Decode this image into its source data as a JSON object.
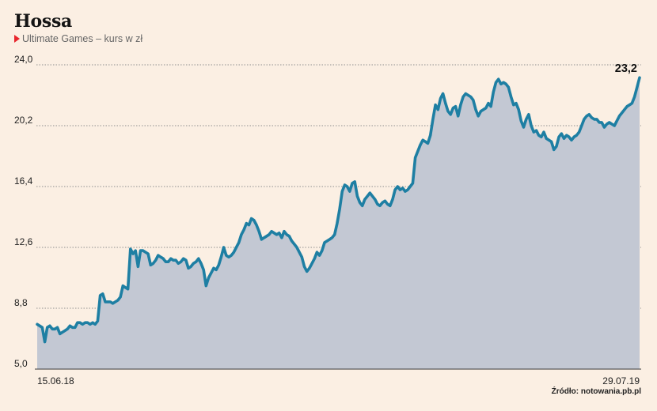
{
  "header": {
    "title": "Hossa",
    "subtitle": "Ultimate Games – kurs w zł",
    "source": "Źródło: notowania.pb.pl"
  },
  "colors": {
    "background": "#fbefe3",
    "line": "#1e7fa3",
    "area": "#c3c8d3",
    "marker": "#e8262d"
  },
  "chart_data": {
    "type": "area",
    "title": "Hossa",
    "subtitle": "Ultimate Games – kurs w zł",
    "xlabel": "",
    "ylabel": "",
    "ylim": [
      5.0,
      24.0
    ],
    "yticks": [
      "24,0",
      "20,2",
      "16,4",
      "12,6",
      "8,8",
      "5,0"
    ],
    "ytick_values": [
      24.0,
      20.2,
      16.4,
      12.6,
      8.8,
      5.0
    ],
    "x_first_label": "15.06.18",
    "x_last_label": "29.07.19",
    "last_value_label": "23,2",
    "grid": "horizontal dotted",
    "values": [
      7.8,
      7.7,
      7.6,
      6.7,
      7.6,
      7.7,
      7.5,
      7.5,
      7.6,
      7.2,
      7.3,
      7.4,
      7.5,
      7.7,
      7.6,
      7.6,
      7.9,
      7.9,
      7.8,
      7.9,
      7.9,
      7.8,
      7.9,
      7.8,
      8.0,
      9.6,
      9.7,
      9.2,
      9.2,
      9.2,
      9.1,
      9.2,
      9.3,
      9.5,
      10.2,
      10.1,
      10.0,
      12.5,
      12.2,
      12.4,
      11.4,
      12.4,
      12.4,
      12.3,
      12.2,
      11.5,
      11.6,
      11.8,
      12.1,
      12.0,
      11.9,
      11.7,
      11.7,
      11.9,
      11.8,
      11.8,
      11.6,
      11.7,
      11.9,
      11.8,
      11.3,
      11.4,
      11.6,
      11.7,
      11.9,
      11.6,
      11.2,
      10.2,
      10.7,
      11.0,
      11.3,
      11.2,
      11.5,
      12.0,
      12.6,
      12.1,
      12.0,
      12.1,
      12.3,
      12.6,
      12.9,
      13.4,
      13.7,
      14.1,
      14.0,
      14.4,
      14.3,
      14.0,
      13.6,
      13.1,
      13.2,
      13.3,
      13.4,
      13.6,
      13.5,
      13.4,
      13.5,
      13.2,
      13.6,
      13.4,
      13.3,
      13.0,
      12.8,
      12.6,
      12.3,
      12.0,
      11.4,
      11.1,
      11.3,
      11.6,
      11.9,
      12.3,
      12.1,
      12.4,
      12.9,
      13.0,
      13.1,
      13.2,
      13.4,
      14.1,
      15.0,
      16.1,
      16.5,
      16.4,
      16.1,
      16.6,
      16.7,
      15.8,
      15.4,
      15.2,
      15.6,
      15.8,
      16.0,
      15.8,
      15.6,
      15.3,
      15.2,
      15.4,
      15.5,
      15.3,
      15.2,
      15.6,
      16.2,
      16.4,
      16.2,
      16.3,
      16.1,
      16.2,
      16.4,
      16.6,
      18.2,
      18.6,
      19.0,
      19.3,
      19.2,
      19.1,
      19.6,
      20.6,
      21.5,
      21.2,
      21.9,
      22.2,
      21.6,
      21.1,
      20.9,
      21.3,
      21.4,
      20.8,
      21.5,
      22.0,
      22.2,
      22.1,
      22.0,
      21.8,
      21.2,
      20.8,
      21.1,
      21.2,
      21.3,
      21.6,
      21.4,
      22.3,
      22.9,
      23.1,
      22.8,
      22.9,
      22.8,
      22.6,
      22.0,
      21.5,
      21.6,
      21.2,
      20.5,
      20.1,
      20.6,
      20.9,
      20.2,
      19.8,
      19.9,
      19.6,
      19.5,
      19.8,
      19.4,
      19.3,
      19.2,
      18.7,
      18.9,
      19.5,
      19.7,
      19.4,
      19.6,
      19.5,
      19.3,
      19.5,
      19.6,
      19.8,
      20.2,
      20.6,
      20.8,
      20.9,
      20.7,
      20.6,
      20.6,
      20.4,
      20.4,
      20.1,
      20.3,
      20.4,
      20.3,
      20.2,
      20.5,
      20.8,
      21.0,
      21.2,
      21.4,
      21.5,
      21.6,
      22.0,
      22.6,
      23.2
    ]
  }
}
